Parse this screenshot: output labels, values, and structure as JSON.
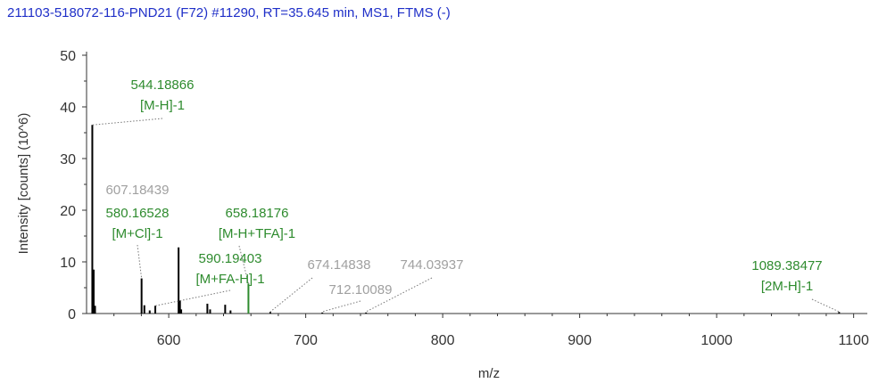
{
  "chart_data": {
    "type": "bar",
    "title": "211103-518072-116-PND21 (F72) #11290, RT=35.645 min, MS1, FTMS (-)",
    "xlabel": "m/z",
    "ylabel": "Intensity [counts] (10^6)",
    "xlim": [
      540,
      1110
    ],
    "ylim": [
      0,
      50
    ],
    "x_ticks": [
      "600",
      "700",
      "800",
      "900",
      "1000",
      "1100"
    ],
    "x_tick_values": [
      600,
      700,
      800,
      900,
      1000,
      1100
    ],
    "y_ticks": [
      "0",
      "10",
      "20",
      "30",
      "40",
      "50"
    ],
    "y_tick_values": [
      0,
      10,
      20,
      30,
      40,
      50
    ],
    "grid": false,
    "colors": {
      "title": "#1f2fc8",
      "axis": "#333333",
      "peaks": "#000000",
      "annotated_peak": "#2e8b2e",
      "gray_label": "#a0a0a0",
      "leader": "#777777"
    },
    "series": [
      {
        "x": [
          544.2,
          545.2,
          546.2,
          580.17,
          582.2,
          586.1,
          590.19,
          607.18,
          608.2,
          609.1,
          628.2,
          630.2,
          641.2,
          645.1,
          658.18,
          674.15,
          712.1,
          744.04,
          1089.38
        ],
        "values": [
          36.5,
          8.5,
          1.5,
          6.8,
          1.6,
          0.6,
          1.5,
          12.8,
          2.5,
          0.8,
          1.9,
          0.8,
          1.7,
          0.6,
          5.8,
          0.3,
          0.2,
          0.2,
          0.3
        ]
      }
    ],
    "annotations": [
      {
        "lines": [
          "544.18866",
          "[M-H]-1"
        ],
        "color": "green",
        "peak_x": 544.19,
        "peak_y": 36.5
      },
      {
        "lines": [
          "607.18439"
        ],
        "color": "gray",
        "peak_x": 607.18,
        "peak_y": 12.8
      },
      {
        "lines": [
          "580.16528",
          "[M+Cl]-1"
        ],
        "color": "green",
        "peak_x": 580.17,
        "peak_y": 6.8
      },
      {
        "lines": [
          "658.18176",
          "[M-H+TFA]-1"
        ],
        "color": "green",
        "peak_x": 658.18,
        "peak_y": 5.8
      },
      {
        "lines": [
          "590.19403",
          "[M+FA-H]-1"
        ],
        "color": "green",
        "peak_x": 590.19,
        "peak_y": 1.5
      },
      {
        "lines": [
          "674.14838"
        ],
        "color": "gray",
        "peak_x": 674.15,
        "peak_y": 0.3
      },
      {
        "lines": [
          "744.03937"
        ],
        "color": "gray",
        "peak_x": 744.04,
        "peak_y": 0.2
      },
      {
        "lines": [
          "712.10089"
        ],
        "color": "gray",
        "peak_x": 712.1,
        "peak_y": 0.2
      },
      {
        "lines": [
          "1089.38477",
          "[2M-H]-1"
        ],
        "color": "green",
        "peak_x": 1089.38,
        "peak_y": 0.3
      }
    ]
  }
}
